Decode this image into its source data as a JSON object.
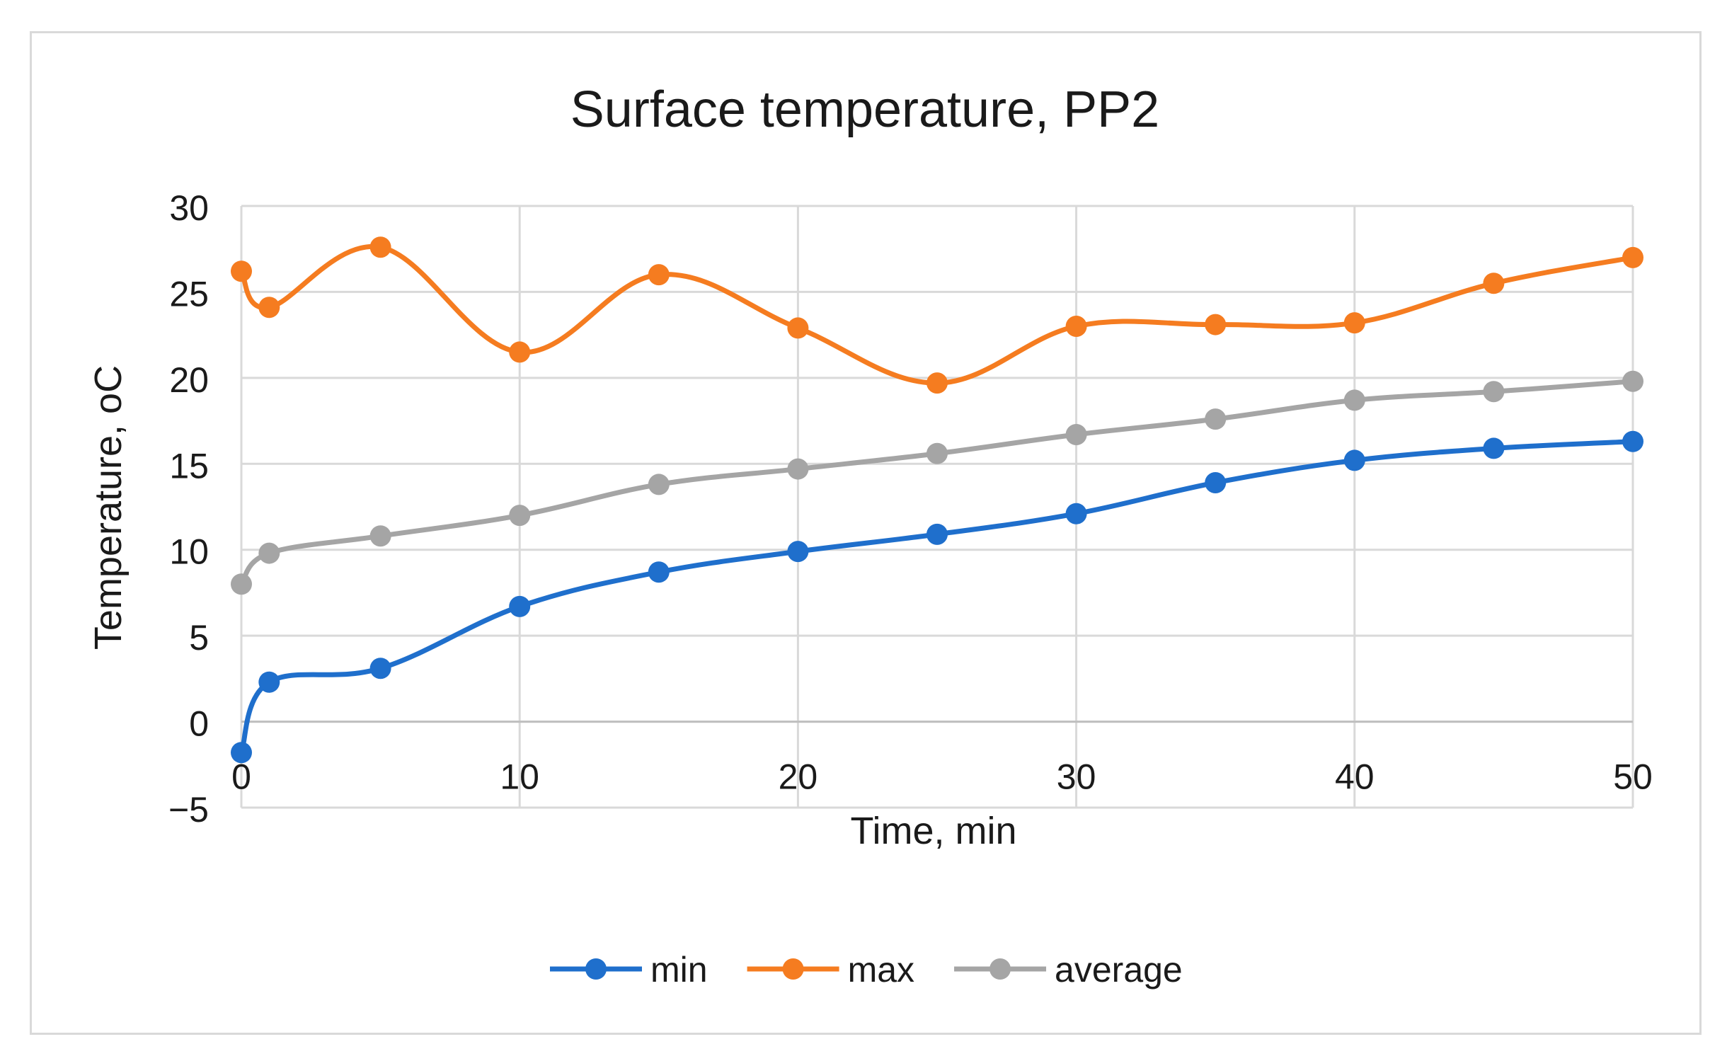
{
  "chart_data": {
    "type": "line",
    "title": "Surface temperature, PP2",
    "xlabel": "Time, min",
    "ylabel": "Temperature, oC",
    "xlim": [
      0,
      50
    ],
    "ylim": [
      -5,
      30
    ],
    "x_ticks": [
      "0",
      "10",
      "20",
      "30",
      "40",
      "50"
    ],
    "y_ticks": [
      "30",
      "25",
      "20",
      "15",
      "10",
      "5",
      "0",
      "−5"
    ],
    "grid": true,
    "legend_position": "bottom",
    "x": [
      0,
      1,
      5,
      10,
      15,
      20,
      25,
      30,
      35,
      40,
      45,
      50
    ],
    "series": [
      {
        "name": "min",
        "color": "#1f6fcc",
        "values": [
          -1.8,
          2.3,
          3.1,
          6.7,
          8.7,
          9.9,
          10.9,
          12.1,
          13.9,
          15.2,
          15.9,
          16.3
        ]
      },
      {
        "name": "max",
        "color": "#f57c20",
        "values": [
          26.2,
          24.1,
          27.6,
          21.5,
          26.0,
          22.9,
          19.7,
          23.0,
          23.1,
          23.2,
          25.5,
          27.0
        ]
      },
      {
        "name": "average",
        "color": "#a5a5a5",
        "values": [
          8.0,
          9.8,
          10.8,
          12.0,
          13.8,
          14.7,
          15.6,
          16.7,
          17.6,
          18.7,
          19.2,
          19.8
        ]
      }
    ]
  }
}
